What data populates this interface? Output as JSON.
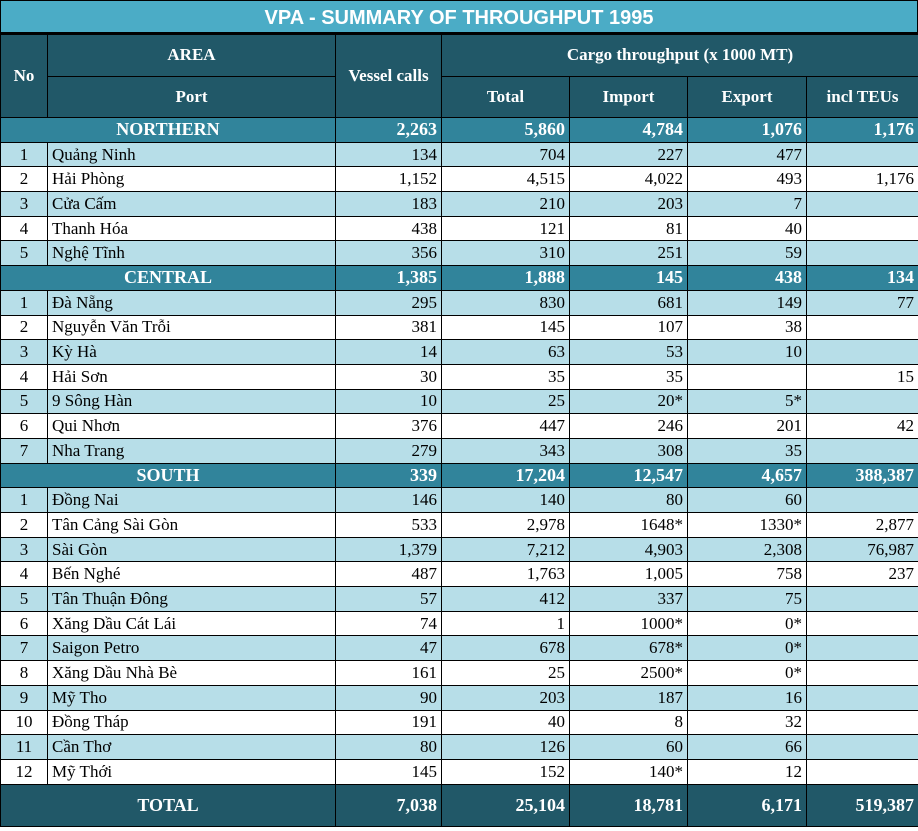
{
  "title": "VPA - SUMMARY OF THROUGHPUT 1995",
  "headers": {
    "no": "No",
    "area": "AREA",
    "port": "Port",
    "vessel": "Vessel calls",
    "cargo": "Cargo throughput (x 1000 MT)",
    "total": "Total",
    "import": "Import",
    "export": "Export",
    "teus": "incl TEUs"
  },
  "sections": [
    {
      "name": "NORTHERN",
      "vessel": "2,263",
      "total": "5,860",
      "import": "4,784",
      "export": "1,076",
      "teus": "1,176",
      "rows": [
        [
          "1",
          "Quảng Ninh",
          "134",
          "704",
          "227",
          "477",
          ""
        ],
        [
          "2",
          "Hải Phòng",
          "1,152",
          "4,515",
          "4,022",
          "493",
          "1,176"
        ],
        [
          "3",
          "Cửa Cấm",
          "183",
          "210",
          "203",
          "7",
          ""
        ],
        [
          "4",
          "Thanh Hóa",
          "438",
          "121",
          "81",
          "40",
          ""
        ],
        [
          "5",
          "Nghệ Tĩnh",
          "356",
          "310",
          "251",
          "59",
          ""
        ]
      ]
    },
    {
      "name": "CENTRAL",
      "vessel": "1,385",
      "total": "1,888",
      "import": "145",
      "export": "438",
      "teus": "134",
      "rows": [
        [
          "1",
          "Đà Nẵng",
          "295",
          "830",
          "681",
          "149",
          "77"
        ],
        [
          "2",
          "Nguyễn Văn Trỗi",
          "381",
          "145",
          "107",
          "38",
          ""
        ],
        [
          "3",
          "Kỳ Hà",
          "14",
          "63",
          "53",
          "10",
          ""
        ],
        [
          "4",
          "Hải Sơn",
          "30",
          "35",
          "35",
          "",
          "15"
        ],
        [
          "5",
          "9 Sông Hàn",
          "10",
          "25",
          "20*",
          "5*",
          ""
        ],
        [
          "6",
          "Qui Nhơn",
          "376",
          "447",
          "246",
          "201",
          "42"
        ],
        [
          "7",
          "Nha Trang",
          "279",
          "343",
          "308",
          "35",
          ""
        ]
      ]
    },
    {
      "name": "SOUTH",
      "vessel": "339",
      "total": "17,204",
      "import": "12,547",
      "export": "4,657",
      "teus": "388,387",
      "rows": [
        [
          "1",
          "Đồng Nai",
          "146",
          "140",
          "80",
          "60",
          ""
        ],
        [
          "2",
          "Tân Cảng Sài Gòn",
          "533",
          "2,978",
          "1648*",
          "1330*",
          "2,877"
        ],
        [
          "3",
          "Sài Gòn",
          "1,379",
          "7,212",
          "4,903",
          "2,308",
          "76,987"
        ],
        [
          "4",
          "Bến Nghé",
          "487",
          "1,763",
          "1,005",
          "758",
          "237"
        ],
        [
          "5",
          "Tân Thuận Đông",
          "57",
          "412",
          "337",
          "75",
          ""
        ],
        [
          "6",
          "Xăng Dầu Cát Lái",
          "74",
          "1",
          "1000*",
          "0*",
          ""
        ],
        [
          "7",
          "Saigon Petro",
          "47",
          "678",
          "678*",
          "0*",
          ""
        ],
        [
          "8",
          "Xăng Dầu Nhà Bè",
          "161",
          "25",
          "2500*",
          "0*",
          ""
        ],
        [
          "9",
          "Mỹ Tho",
          "90",
          "203",
          "187",
          "16",
          ""
        ],
        [
          "10",
          "Đồng Tháp",
          "191",
          "40",
          "8",
          "32",
          ""
        ],
        [
          "11",
          "Cần Thơ",
          "80",
          "126",
          "60",
          "66",
          ""
        ],
        [
          "12",
          "Mỹ Thới",
          "145",
          "152",
          "140*",
          "12",
          ""
        ]
      ]
    }
  ],
  "total": {
    "label": "TOTAL",
    "vessel": "7,038",
    "total": "25,104",
    "import": "18,781",
    "export": "6,171",
    "teus": "519,387"
  }
}
